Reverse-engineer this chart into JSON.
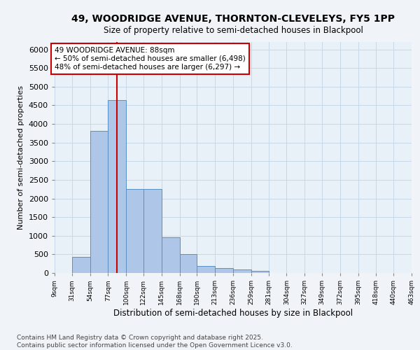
{
  "title1": "49, WOODRIDGE AVENUE, THORNTON-CLEVELEYS, FY5 1PP",
  "title2": "Size of property relative to semi-detached houses in Blackpool",
  "xlabel": "Distribution of semi-detached houses by size in Blackpool",
  "ylabel": "Number of semi-detached properties",
  "footnote": "Contains HM Land Registry data © Crown copyright and database right 2025.\nContains public sector information licensed under the Open Government Licence v3.0.",
  "bar_edges": [
    9,
    31,
    54,
    77,
    100,
    122,
    145,
    168,
    190,
    213,
    236,
    259,
    281,
    304,
    327,
    349,
    372,
    395,
    418,
    440,
    463
  ],
  "bar_heights": [
    0,
    430,
    3820,
    4650,
    2250,
    2250,
    960,
    500,
    180,
    130,
    100,
    50,
    0,
    0,
    0,
    0,
    0,
    0,
    0,
    0
  ],
  "bar_color": "#aec6e8",
  "bar_edgecolor": "#5a8fc4",
  "grid_color": "#c8d8e8",
  "bg_color": "#e8f0f8",
  "fig_bg_color": "#f0f4f8",
  "vline_x": 88,
  "vline_color": "#cc0000",
  "annotation_title": "49 WOODRIDGE AVENUE: 88sqm",
  "annotation_line1": "← 50% of semi-detached houses are smaller (6,498)",
  "annotation_line2": "48% of semi-detached houses are larger (6,297) →",
  "annotation_box_edgecolor": "#cc0000",
  "ylim": [
    0,
    6200
  ],
  "yticks": [
    0,
    500,
    1000,
    1500,
    2000,
    2500,
    3000,
    3500,
    4000,
    4500,
    5000,
    5500,
    6000
  ],
  "tick_labels": [
    "9sqm",
    "31sqm",
    "54sqm",
    "77sqm",
    "100sqm",
    "122sqm",
    "145sqm",
    "168sqm",
    "190sqm",
    "213sqm",
    "236sqm",
    "259sqm",
    "281sqm",
    "304sqm",
    "327sqm",
    "349sqm",
    "372sqm",
    "395sqm",
    "418sqm",
    "440sqm",
    "463sqm"
  ],
  "annot_fontsize": 7.5,
  "title1_fontsize": 10,
  "title2_fontsize": 8.5,
  "ylabel_fontsize": 8,
  "xlabel_fontsize": 8.5,
  "footnote_fontsize": 6.5
}
